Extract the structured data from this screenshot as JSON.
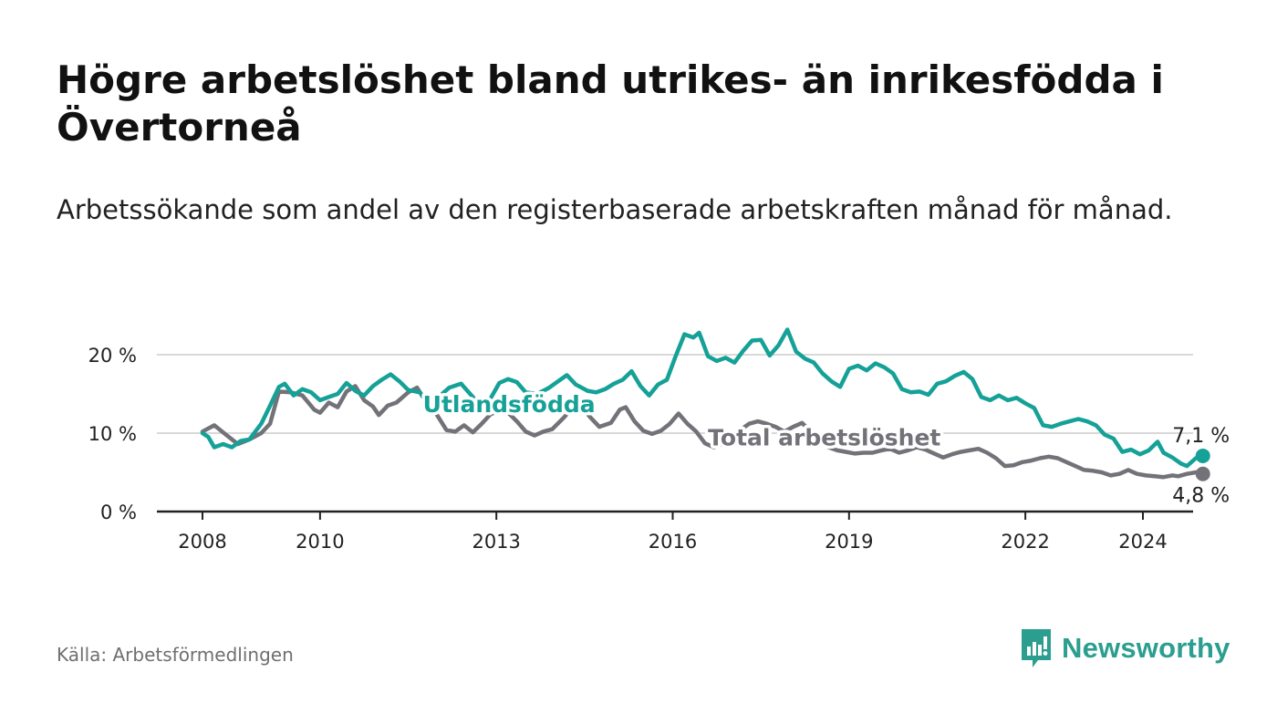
{
  "title": "Högre arbetslöshet bland utrikes- än inrikesfödda i Övertorneå",
  "subtitle": "Arbetssökande som andel av den registerbaserade arbetskraften månad för månad.",
  "source": "Källa: Arbetsförmedlingen",
  "brand": {
    "name": "Newsworthy",
    "icon": "newsworthy-logo-icon",
    "color": "#2b9e8f"
  },
  "chart_data": {
    "type": "line",
    "title": "Högre arbetslöshet bland utrikes- än inrikesfödda i Övertorneå",
    "xlabel": "",
    "ylabel": "",
    "xlim": [
      2008.0,
      2024.2
    ],
    "ylim": [
      0,
      23.5
    ],
    "y_ticks": [
      {
        "value": 0,
        "label": "0 %"
      },
      {
        "value": 10,
        "label": "10 %"
      },
      {
        "value": 20,
        "label": "20 %"
      }
    ],
    "x_ticks": [
      {
        "value": 2008,
        "label": "2008"
      },
      {
        "value": 2010,
        "label": "2010"
      },
      {
        "value": 2013,
        "label": "2013"
      },
      {
        "value": 2016,
        "label": "2016"
      },
      {
        "value": 2019,
        "label": "2019"
      },
      {
        "value": 2022,
        "label": "2022"
      },
      {
        "value": 2024,
        "label": "2024"
      }
    ],
    "grid": true,
    "series": [
      {
        "name": "Total arbetslöshet",
        "label": "Total arbetslöshet",
        "color": "#737278",
        "end_label": "4,8 %",
        "last_value": 4.8,
        "label_at": [
          2016.6,
          9.5
        ],
        "points": [
          [
            2008.0,
            10.2
          ],
          [
            2008.2,
            11.0
          ],
          [
            2008.4,
            9.8
          ],
          [
            2008.6,
            8.6
          ],
          [
            2008.8,
            9.2
          ],
          [
            2009.0,
            10.0
          ],
          [
            2009.15,
            11.2
          ],
          [
            2009.3,
            15.3
          ],
          [
            2009.5,
            15.2
          ],
          [
            2009.7,
            14.8
          ],
          [
            2009.9,
            13.0
          ],
          [
            2010.0,
            12.6
          ],
          [
            2010.15,
            13.9
          ],
          [
            2010.3,
            13.3
          ],
          [
            2010.45,
            15.3
          ],
          [
            2010.6,
            16.0
          ],
          [
            2010.75,
            14.2
          ],
          [
            2010.9,
            13.4
          ],
          [
            2011.0,
            12.3
          ],
          [
            2011.15,
            13.5
          ],
          [
            2011.3,
            13.9
          ],
          [
            2011.5,
            15.2
          ],
          [
            2011.65,
            15.8
          ],
          [
            2011.8,
            14.0
          ],
          [
            2011.95,
            12.8
          ],
          [
            2012.15,
            10.4
          ],
          [
            2012.3,
            10.2
          ],
          [
            2012.45,
            11.0
          ],
          [
            2012.6,
            10.1
          ],
          [
            2012.75,
            11.2
          ],
          [
            2012.9,
            12.4
          ],
          [
            2013.05,
            12.9
          ],
          [
            2013.2,
            12.6
          ],
          [
            2013.35,
            11.5
          ],
          [
            2013.5,
            10.2
          ],
          [
            2013.65,
            9.7
          ],
          [
            2013.8,
            10.2
          ],
          [
            2013.95,
            10.5
          ],
          [
            2014.15,
            12.0
          ],
          [
            2014.3,
            13.3
          ],
          [
            2014.45,
            13.4
          ],
          [
            2014.6,
            12.0
          ],
          [
            2014.75,
            10.8
          ],
          [
            2014.95,
            11.3
          ],
          [
            2015.1,
            13.0
          ],
          [
            2015.2,
            13.3
          ],
          [
            2015.35,
            11.5
          ],
          [
            2015.5,
            10.3
          ],
          [
            2015.65,
            9.9
          ],
          [
            2015.8,
            10.3
          ],
          [
            2015.95,
            11.2
          ],
          [
            2016.1,
            12.5
          ],
          [
            2016.25,
            11.2
          ],
          [
            2016.4,
            10.2
          ],
          [
            2016.55,
            8.7
          ],
          [
            2016.7,
            8.2
          ],
          [
            2016.85,
            8.6
          ],
          [
            2017.0,
            9.0
          ],
          [
            2017.15,
            10.4
          ],
          [
            2017.3,
            11.2
          ],
          [
            2017.45,
            11.5
          ],
          [
            2017.6,
            11.2
          ],
          [
            2017.75,
            10.8
          ],
          [
            2017.9,
            10.2
          ],
          [
            2018.05,
            10.8
          ],
          [
            2018.2,
            11.3
          ],
          [
            2018.35,
            10.2
          ],
          [
            2018.5,
            9.3
          ],
          [
            2018.65,
            8.2
          ],
          [
            2018.8,
            7.8
          ],
          [
            2018.95,
            7.6
          ],
          [
            2019.1,
            7.4
          ],
          [
            2019.25,
            7.5
          ],
          [
            2019.4,
            7.5
          ],
          [
            2019.55,
            7.8
          ],
          [
            2019.7,
            8.0
          ],
          [
            2019.85,
            7.5
          ],
          [
            2020.0,
            7.8
          ],
          [
            2020.15,
            8.2
          ],
          [
            2020.3,
            7.9
          ],
          [
            2020.45,
            7.4
          ],
          [
            2020.6,
            6.9
          ],
          [
            2020.75,
            7.3
          ],
          [
            2020.9,
            7.6
          ],
          [
            2021.05,
            7.8
          ],
          [
            2021.2,
            8.0
          ],
          [
            2021.35,
            7.5
          ],
          [
            2021.5,
            6.8
          ],
          [
            2021.65,
            5.8
          ],
          [
            2021.8,
            5.9
          ],
          [
            2021.95,
            6.3
          ],
          [
            2022.1,
            6.5
          ],
          [
            2022.25,
            6.8
          ],
          [
            2022.4,
            7.0
          ],
          [
            2022.55,
            6.8
          ],
          [
            2022.7,
            6.3
          ],
          [
            2022.85,
            5.8
          ],
          [
            2023.0,
            5.3
          ],
          [
            2023.15,
            5.2
          ],
          [
            2023.3,
            5.0
          ],
          [
            2023.45,
            4.6
          ],
          [
            2023.6,
            4.8
          ],
          [
            2023.75,
            5.3
          ],
          [
            2023.9,
            4.8
          ],
          [
            2024.05,
            4.6
          ],
          [
            2024.2,
            4.5
          ],
          [
            2024.35,
            4.4
          ],
          [
            2024.5,
            4.6
          ],
          [
            2024.6,
            4.5
          ],
          [
            2024.75,
            4.8
          ],
          [
            2024.9,
            5.0
          ],
          [
            2025.02,
            4.8
          ]
        ]
      },
      {
        "name": "Utlandsfödda",
        "label": "Utlandsfödda",
        "color": "#15a197",
        "end_label": "7,1 %",
        "last_value": 7.1,
        "label_at": [
          2011.75,
          13.7
        ],
        "points": [
          [
            2008.0,
            10.0
          ],
          [
            2008.1,
            9.5
          ],
          [
            2008.2,
            8.2
          ],
          [
            2008.35,
            8.6
          ],
          [
            2008.5,
            8.2
          ],
          [
            2008.65,
            9.0
          ],
          [
            2008.8,
            9.2
          ],
          [
            2009.0,
            11.2
          ],
          [
            2009.15,
            13.5
          ],
          [
            2009.3,
            15.9
          ],
          [
            2009.4,
            16.3
          ],
          [
            2009.55,
            14.8
          ],
          [
            2009.7,
            15.6
          ],
          [
            2009.85,
            15.2
          ],
          [
            2010.0,
            14.2
          ],
          [
            2010.15,
            14.6
          ],
          [
            2010.3,
            15.0
          ],
          [
            2010.45,
            16.4
          ],
          [
            2010.6,
            15.4
          ],
          [
            2010.75,
            14.8
          ],
          [
            2010.9,
            16.0
          ],
          [
            2011.05,
            16.8
          ],
          [
            2011.2,
            17.5
          ],
          [
            2011.35,
            16.6
          ],
          [
            2011.5,
            15.5
          ],
          [
            2011.7,
            15.2
          ],
          [
            2011.85,
            13.5
          ],
          [
            2012.0,
            14.5
          ],
          [
            2012.2,
            15.8
          ],
          [
            2012.4,
            16.3
          ],
          [
            2012.6,
            14.6
          ],
          [
            2012.75,
            13.2
          ],
          [
            2012.9,
            14.4
          ],
          [
            2013.05,
            16.4
          ],
          [
            2013.2,
            16.9
          ],
          [
            2013.35,
            16.5
          ],
          [
            2013.5,
            15.2
          ],
          [
            2013.7,
            15.0
          ],
          [
            2013.9,
            15.8
          ],
          [
            2014.05,
            16.6
          ],
          [
            2014.2,
            17.4
          ],
          [
            2014.35,
            16.2
          ],
          [
            2014.55,
            15.4
          ],
          [
            2014.7,
            15.2
          ],
          [
            2014.85,
            15.6
          ],
          [
            2015.0,
            16.3
          ],
          [
            2015.15,
            16.8
          ],
          [
            2015.3,
            17.9
          ],
          [
            2015.45,
            16.0
          ],
          [
            2015.6,
            14.8
          ],
          [
            2015.75,
            16.2
          ],
          [
            2015.9,
            16.8
          ],
          [
            2016.05,
            19.8
          ],
          [
            2016.2,
            22.6
          ],
          [
            2016.35,
            22.2
          ],
          [
            2016.45,
            22.8
          ],
          [
            2016.6,
            19.8
          ],
          [
            2016.75,
            19.2
          ],
          [
            2016.9,
            19.6
          ],
          [
            2017.05,
            19.0
          ],
          [
            2017.2,
            20.5
          ],
          [
            2017.35,
            21.8
          ],
          [
            2017.5,
            21.9
          ],
          [
            2017.65,
            19.9
          ],
          [
            2017.8,
            21.2
          ],
          [
            2017.95,
            23.2
          ],
          [
            2018.1,
            20.4
          ],
          [
            2018.25,
            19.5
          ],
          [
            2018.4,
            19.0
          ],
          [
            2018.55,
            17.6
          ],
          [
            2018.7,
            16.6
          ],
          [
            2018.85,
            15.9
          ],
          [
            2019.0,
            18.2
          ],
          [
            2019.15,
            18.6
          ],
          [
            2019.3,
            18.0
          ],
          [
            2019.45,
            18.9
          ],
          [
            2019.6,
            18.4
          ],
          [
            2019.75,
            17.6
          ],
          [
            2019.9,
            15.6
          ],
          [
            2020.05,
            15.2
          ],
          [
            2020.2,
            15.3
          ],
          [
            2020.35,
            14.9
          ],
          [
            2020.5,
            16.3
          ],
          [
            2020.65,
            16.6
          ],
          [
            2020.8,
            17.3
          ],
          [
            2020.95,
            17.8
          ],
          [
            2021.1,
            16.9
          ],
          [
            2021.25,
            14.6
          ],
          [
            2021.4,
            14.2
          ],
          [
            2021.55,
            14.8
          ],
          [
            2021.7,
            14.2
          ],
          [
            2021.85,
            14.5
          ],
          [
            2022.0,
            13.8
          ],
          [
            2022.15,
            13.2
          ],
          [
            2022.3,
            11.0
          ],
          [
            2022.45,
            10.8
          ],
          [
            2022.6,
            11.2
          ],
          [
            2022.75,
            11.5
          ],
          [
            2022.9,
            11.8
          ],
          [
            2023.05,
            11.5
          ],
          [
            2023.2,
            11.0
          ],
          [
            2023.35,
            9.8
          ],
          [
            2023.5,
            9.3
          ],
          [
            2023.65,
            7.6
          ],
          [
            2023.8,
            7.9
          ],
          [
            2023.95,
            7.3
          ],
          [
            2024.1,
            7.8
          ],
          [
            2024.25,
            8.9
          ],
          [
            2024.35,
            7.5
          ],
          [
            2024.5,
            6.9
          ],
          [
            2024.65,
            6.1
          ],
          [
            2024.75,
            5.8
          ],
          [
            2024.9,
            6.8
          ],
          [
            2025.02,
            7.1
          ]
        ]
      }
    ]
  }
}
